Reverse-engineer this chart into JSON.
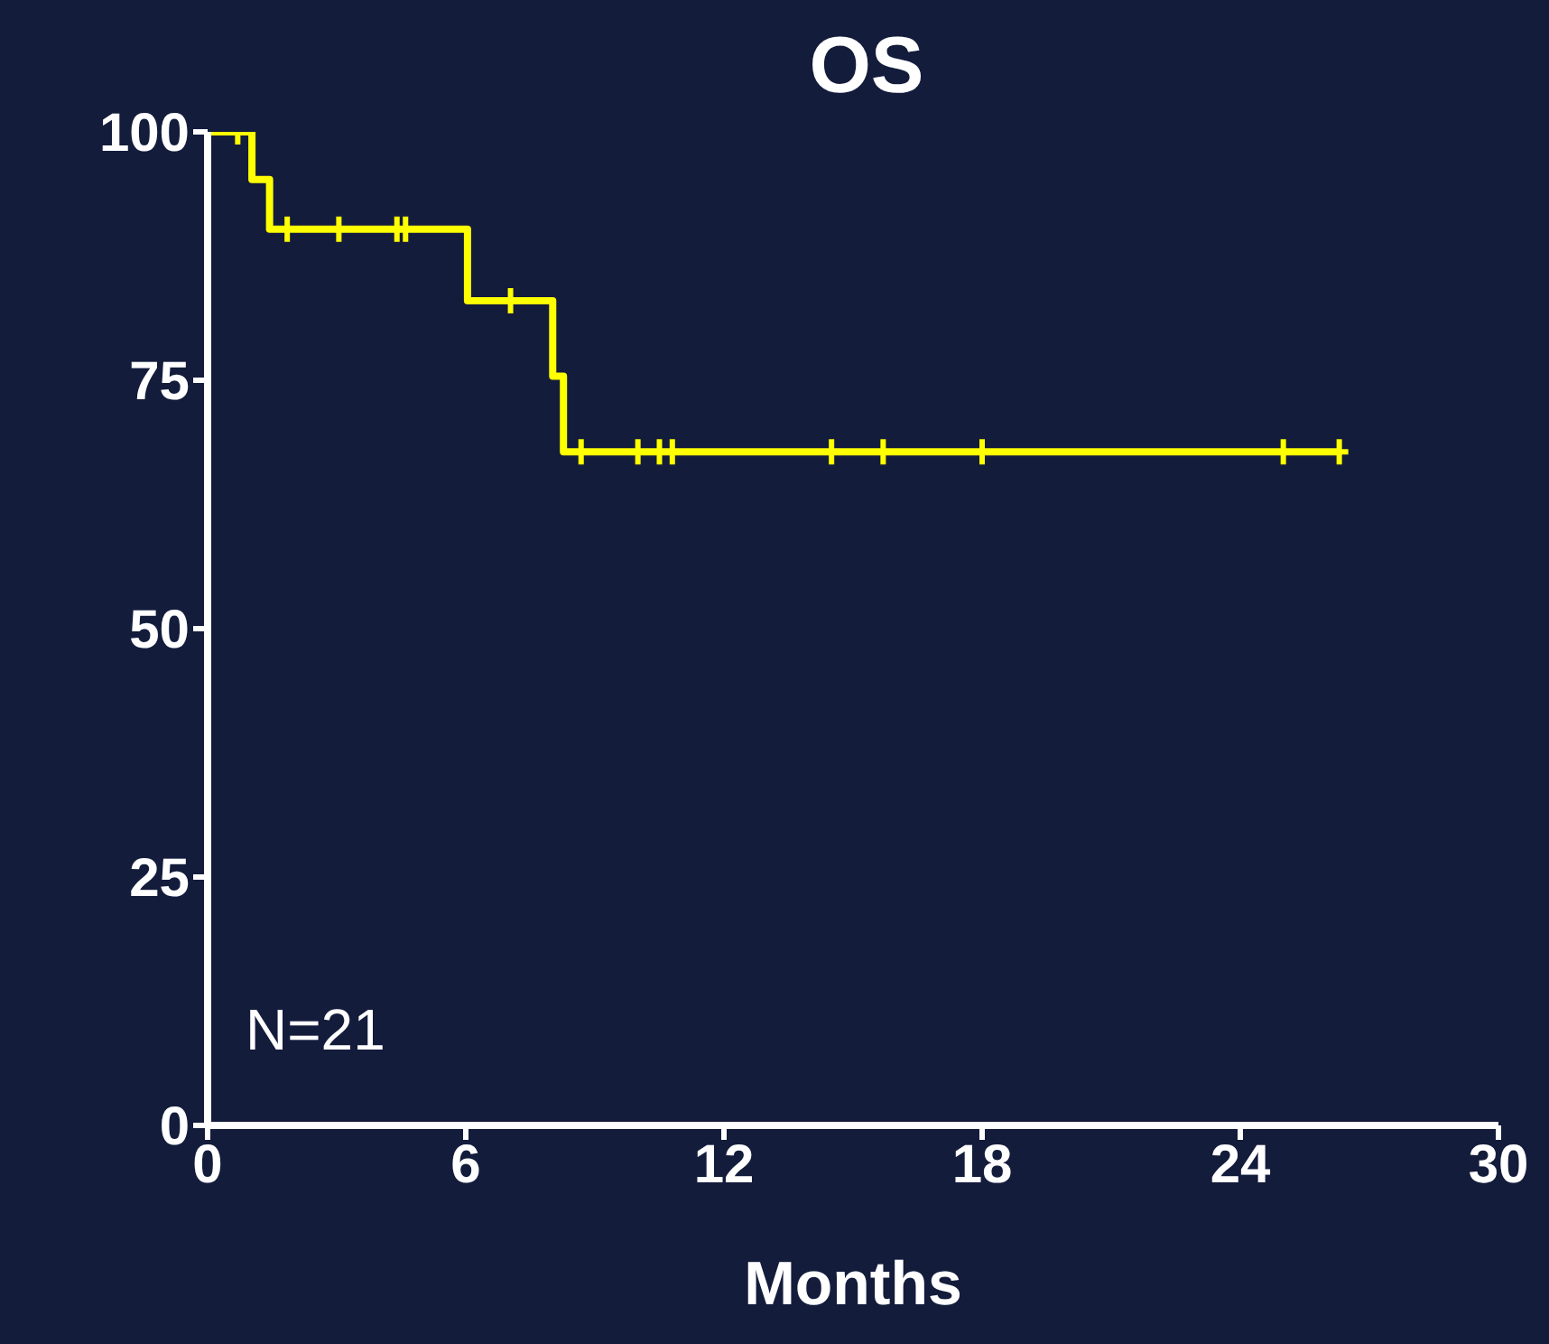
{
  "chart_data": {
    "type": "step",
    "title": "OS",
    "xlabel": "Months",
    "xlim": [
      0,
      30
    ],
    "xticks": [
      0,
      6,
      12,
      18,
      24,
      30
    ],
    "ylim": [
      0,
      100
    ],
    "yticks": [
      0,
      25,
      50,
      75,
      100
    ],
    "grid": false,
    "annotations": [
      "N=21"
    ],
    "series": [
      {
        "color": "#ffff00",
        "marker": "none",
        "x": [
          0,
          1.03,
          1.44,
          6.04,
          8.02,
          8.27,
          26.3
        ],
        "values": [
          100,
          95.2,
          90.2,
          83.0,
          75.4,
          67.8,
          67.8
        ]
      },
      {
        "type": "scatter",
        "color": "#ffff00",
        "marker": "cross",
        "x": [
          0.7,
          1.85,
          3.05,
          4.4,
          4.6,
          7.04,
          8.68,
          10.0,
          10.5,
          10.8,
          14.5,
          15.7,
          18.0,
          25.0,
          26.3
        ],
        "values": [
          100,
          90.2,
          90.2,
          90.2,
          90.2,
          83.0,
          67.8,
          67.8,
          67.8,
          67.8,
          67.8,
          67.8,
          67.8,
          67.8,
          67.8
        ]
      }
    ]
  }
}
